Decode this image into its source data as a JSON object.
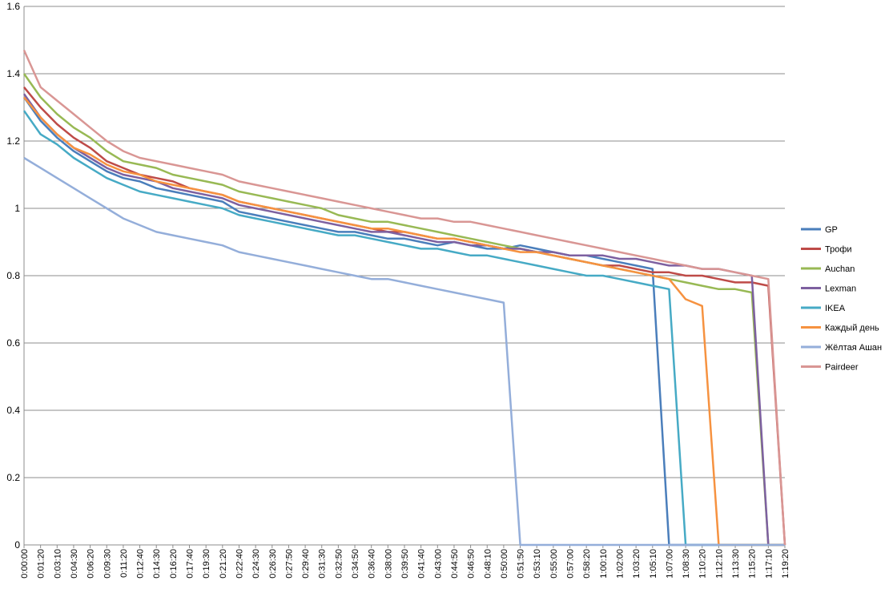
{
  "chart_data": {
    "type": "line",
    "title": "",
    "xlabel": "",
    "ylabel": "",
    "ylim": [
      0,
      1.6
    ],
    "yticks": [
      "0",
      "0.2",
      "0.4",
      "0.6",
      "0.8",
      "1",
      "1.2",
      "1.4",
      "1.6"
    ],
    "grid": "horizontal",
    "legend_position": "right",
    "x": [
      "0:00:00",
      "0:01:20",
      "0:03:10",
      "0:04:30",
      "0:06:20",
      "0:09:30",
      "0:11:20",
      "0:12:40",
      "0:14:30",
      "0:16:20",
      "0:17:40",
      "0:19:30",
      "0:21:20",
      "0:22:40",
      "0:24:30",
      "0:26:30",
      "0:27:50",
      "0:29:40",
      "0:31:30",
      "0:32:50",
      "0:34:50",
      "0:36:40",
      "0:38:00",
      "0:39:50",
      "0:41:40",
      "0:43:00",
      "0:44:50",
      "0:46:50",
      "0:48:10",
      "0:50:00",
      "0:51:50",
      "0:53:10",
      "0:55:00",
      "0:57:00",
      "0:58:20",
      "1:00:10",
      "1:02:00",
      "1:03:20",
      "1:05:10",
      "1:07:00",
      "1:08:30",
      "1:10:20",
      "1:12:10",
      "1:13:30",
      "1:15:20",
      "1:17:10",
      "1:19:20"
    ],
    "series": [
      {
        "name": "GP",
        "color": "#4A7EBB",
        "values": [
          1.33,
          1.26,
          1.21,
          1.17,
          1.14,
          1.11,
          1.09,
          1.08,
          1.06,
          1.05,
          1.04,
          1.03,
          1.02,
          0.99,
          0.98,
          0.97,
          0.96,
          0.95,
          0.94,
          0.93,
          0.93,
          0.92,
          0.91,
          0.91,
          0.9,
          0.89,
          0.9,
          0.89,
          0.88,
          0.88,
          0.89,
          0.88,
          0.87,
          0.86,
          0.86,
          0.85,
          0.84,
          0.83,
          0.82,
          0,
          0,
          0,
          0,
          0,
          0,
          0,
          0
        ]
      },
      {
        "name": "Трофи",
        "color": "#BE4B48",
        "values": [
          1.36,
          1.3,
          1.25,
          1.21,
          1.18,
          1.14,
          1.12,
          1.1,
          1.09,
          1.08,
          1.06,
          1.05,
          1.04,
          1.02,
          1.01,
          1.0,
          0.99,
          0.98,
          0.97,
          0.96,
          0.95,
          0.94,
          0.93,
          0.93,
          0.92,
          0.91,
          0.91,
          0.9,
          0.89,
          0.88,
          0.88,
          0.87,
          0.86,
          0.85,
          0.84,
          0.83,
          0.83,
          0.82,
          0.81,
          0.81,
          0.8,
          0.8,
          0.79,
          0.78,
          0.78,
          0.77,
          0
        ]
      },
      {
        "name": "Auchan",
        "color": "#98B954",
        "values": [
          1.4,
          1.33,
          1.28,
          1.24,
          1.21,
          1.17,
          1.14,
          1.13,
          1.12,
          1.1,
          1.09,
          1.08,
          1.07,
          1.05,
          1.04,
          1.03,
          1.02,
          1.01,
          1.0,
          0.98,
          0.97,
          0.96,
          0.96,
          0.95,
          0.94,
          0.93,
          0.92,
          0.91,
          0.9,
          0.89,
          0.88,
          0.87,
          0.86,
          0.85,
          0.84,
          0.83,
          0.82,
          0.81,
          0.8,
          0.79,
          0.78,
          0.77,
          0.76,
          0.76,
          0.75,
          0,
          0
        ]
      },
      {
        "name": "Lexman",
        "color": "#7D60A0",
        "values": [
          1.34,
          1.27,
          1.22,
          1.18,
          1.15,
          1.12,
          1.1,
          1.09,
          1.08,
          1.06,
          1.05,
          1.04,
          1.03,
          1.01,
          1.0,
          0.99,
          0.98,
          0.97,
          0.96,
          0.95,
          0.94,
          0.93,
          0.93,
          0.92,
          0.91,
          0.9,
          0.9,
          0.89,
          0.89,
          0.88,
          0.88,
          0.87,
          0.87,
          0.86,
          0.86,
          0.86,
          0.85,
          0.85,
          0.84,
          0.83,
          0.83,
          0.82,
          0.82,
          0.81,
          0.8,
          0,
          0
        ]
      },
      {
        "name": "IKEA",
        "color": "#46AAC5",
        "values": [
          1.29,
          1.22,
          1.19,
          1.15,
          1.12,
          1.09,
          1.07,
          1.05,
          1.04,
          1.03,
          1.02,
          1.01,
          1.0,
          0.98,
          0.97,
          0.96,
          0.95,
          0.94,
          0.93,
          0.92,
          0.92,
          0.91,
          0.9,
          0.89,
          0.88,
          0.88,
          0.87,
          0.86,
          0.86,
          0.85,
          0.84,
          0.83,
          0.82,
          0.81,
          0.8,
          0.8,
          0.79,
          0.78,
          0.77,
          0.76,
          0,
          0,
          0,
          0,
          0,
          0,
          0
        ]
      },
      {
        "name": "Каждый день",
        "color": "#F69240",
        "values": [
          1.33,
          1.27,
          1.22,
          1.18,
          1.16,
          1.13,
          1.11,
          1.1,
          1.08,
          1.07,
          1.06,
          1.05,
          1.04,
          1.02,
          1.01,
          1.0,
          0.99,
          0.98,
          0.97,
          0.96,
          0.95,
          0.94,
          0.94,
          0.93,
          0.92,
          0.91,
          0.91,
          0.9,
          0.89,
          0.88,
          0.87,
          0.87,
          0.86,
          0.85,
          0.84,
          0.83,
          0.82,
          0.81,
          0.8,
          0.79,
          0.73,
          0.71,
          0,
          0,
          0,
          0,
          0
        ]
      },
      {
        "name": "Жёлтая Ашан",
        "color": "#94AEDA",
        "values": [
          1.15,
          1.12,
          1.09,
          1.06,
          1.03,
          1.0,
          0.97,
          0.95,
          0.93,
          0.92,
          0.91,
          0.9,
          0.89,
          0.87,
          0.86,
          0.85,
          0.84,
          0.83,
          0.82,
          0.81,
          0.8,
          0.79,
          0.79,
          0.78,
          0.77,
          0.76,
          0.75,
          0.74,
          0.73,
          0.72,
          0,
          0,
          0,
          0,
          0,
          0,
          0,
          0,
          0,
          0,
          0,
          0,
          0,
          0,
          0,
          0,
          0
        ]
      },
      {
        "name": "Pairdeer",
        "color": "#D99694",
        "values": [
          1.47,
          1.36,
          1.32,
          1.28,
          1.24,
          1.2,
          1.17,
          1.15,
          1.14,
          1.13,
          1.12,
          1.11,
          1.1,
          1.08,
          1.07,
          1.06,
          1.05,
          1.04,
          1.03,
          1.02,
          1.01,
          1.0,
          0.99,
          0.98,
          0.97,
          0.97,
          0.96,
          0.96,
          0.95,
          0.94,
          0.93,
          0.92,
          0.91,
          0.9,
          0.89,
          0.88,
          0.87,
          0.86,
          0.85,
          0.84,
          0.83,
          0.82,
          0.82,
          0.81,
          0.8,
          0.79,
          0
        ]
      }
    ]
  }
}
